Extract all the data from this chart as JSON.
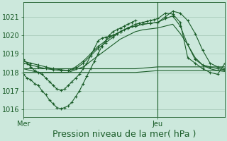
{
  "bg_color": "#cce8dc",
  "grid_color": "#aaccbb",
  "line_color": "#1a5c28",
  "xlabel": "Pression niveau de la mer( hPa )",
  "xlabel_fontsize": 9,
  "yticks": [
    1016,
    1017,
    1018,
    1019,
    1020,
    1021
  ],
  "ylim": [
    1015.6,
    1021.8
  ],
  "xlim": [
    0,
    54
  ],
  "xtick_labels": [
    "Mer",
    "Jeu"
  ],
  "xtick_positions": [
    0,
    36
  ],
  "vline_x": 36,
  "series": [
    {
      "x": [
        0,
        1,
        2,
        3,
        4,
        5,
        6,
        7,
        8,
        9,
        10,
        11,
        12,
        13,
        14,
        15,
        16,
        17,
        18,
        19,
        20,
        21,
        22,
        23,
        24,
        25,
        26,
        27,
        28,
        29,
        30
      ],
      "y": [
        1017.9,
        1017.7,
        1017.6,
        1017.4,
        1017.3,
        1017.0,
        1016.8,
        1016.5,
        1016.3,
        1016.1,
        1016.05,
        1016.1,
        1016.2,
        1016.4,
        1016.7,
        1017.0,
        1017.4,
        1017.8,
        1018.2,
        1018.6,
        1019.0,
        1019.4,
        1019.7,
        1020.0,
        1020.2,
        1020.3,
        1020.4,
        1020.5,
        1020.6,
        1020.7,
        1020.8
      ],
      "with_markers": true
    },
    {
      "x": [
        0,
        6,
        12,
        18,
        24,
        30,
        36,
        42,
        48,
        54
      ],
      "y": [
        1018.0,
        1018.0,
        1018.0,
        1018.0,
        1018.0,
        1018.0,
        1018.1,
        1018.1,
        1018.1,
        1018.1
      ],
      "with_markers": false
    },
    {
      "x": [
        0,
        6,
        12,
        18,
        24,
        30,
        36,
        42,
        48,
        54
      ],
      "y": [
        1018.2,
        1018.2,
        1018.2,
        1018.2,
        1018.2,
        1018.2,
        1018.3,
        1018.3,
        1018.3,
        1018.3
      ],
      "with_markers": false
    },
    {
      "x": [
        0,
        2,
        4,
        6,
        8,
        10,
        12,
        14,
        16,
        18,
        20,
        22,
        24,
        26,
        28,
        30,
        32,
        34,
        36,
        38,
        40,
        42,
        44,
        46,
        48,
        50,
        52,
        54
      ],
      "y": [
        1018.5,
        1018.4,
        1018.3,
        1018.2,
        1018.15,
        1018.1,
        1018.1,
        1018.2,
        1018.5,
        1018.9,
        1019.3,
        1019.6,
        1019.9,
        1020.2,
        1020.4,
        1020.5,
        1020.6,
        1020.65,
        1020.7,
        1021.0,
        1021.3,
        1021.2,
        1020.8,
        1020.1,
        1019.2,
        1018.5,
        1018.3,
        1018.2
      ],
      "with_markers": true
    },
    {
      "x": [
        0,
        2,
        4,
        6,
        8,
        10,
        12,
        14,
        16,
        18,
        20,
        22,
        24,
        26,
        28,
        30,
        32,
        34,
        36,
        38,
        40,
        42,
        44,
        46,
        48,
        50,
        52,
        54
      ],
      "y": [
        1018.6,
        1018.5,
        1018.4,
        1018.3,
        1018.2,
        1018.15,
        1018.1,
        1018.3,
        1018.6,
        1019.0,
        1019.4,
        1019.7,
        1020.0,
        1020.2,
        1020.4,
        1020.5,
        1020.6,
        1020.65,
        1020.7,
        1020.9,
        1021.05,
        1020.5,
        1019.5,
        1018.7,
        1018.4,
        1018.3,
        1018.2,
        1018.15
      ],
      "with_markers": true
    },
    {
      "x": [
        0,
        2,
        4,
        6,
        8,
        10,
        12,
        14,
        16,
        18,
        20,
        22,
        24,
        26,
        28,
        30,
        32,
        34,
        36,
        38,
        40,
        42,
        44,
        46,
        48,
        50,
        52,
        54
      ],
      "y": [
        1018.2,
        1018.1,
        1018.0,
        1018.0,
        1018.0,
        1018.0,
        1018.0,
        1018.15,
        1018.3,
        1018.6,
        1018.9,
        1019.2,
        1019.5,
        1019.8,
        1020.0,
        1020.2,
        1020.3,
        1020.35,
        1020.4,
        1020.5,
        1020.6,
        1020.1,
        1019.5,
        1018.8,
        1018.4,
        1018.2,
        1018.1,
        1018.05
      ],
      "with_markers": false
    },
    {
      "x": [
        0,
        1,
        2,
        3,
        4,
        5,
        6,
        7,
        8,
        9,
        10,
        11,
        12,
        13,
        14,
        15,
        16,
        17,
        18,
        19,
        20,
        21,
        22,
        23,
        24,
        25,
        26,
        27,
        28,
        29,
        30,
        31,
        32,
        33,
        34,
        35,
        36,
        38,
        40,
        42,
        44,
        46,
        48,
        50,
        52,
        54
      ],
      "y": [
        1018.7,
        1018.5,
        1018.3,
        1018.1,
        1018.0,
        1017.9,
        1017.7,
        1017.5,
        1017.3,
        1017.1,
        1017.05,
        1017.1,
        1017.3,
        1017.5,
        1017.7,
        1017.9,
        1018.2,
        1018.5,
        1018.9,
        1019.3,
        1019.7,
        1019.85,
        1019.9,
        1019.95,
        1020.0,
        1020.1,
        1020.2,
        1020.3,
        1020.4,
        1020.5,
        1020.6,
        1020.65,
        1020.7,
        1020.75,
        1020.8,
        1020.85,
        1020.9,
        1021.2,
        1021.15,
        1020.7,
        1018.8,
        1018.5,
        1018.2,
        1018.0,
        1017.9,
        1018.5
      ],
      "with_markers": true
    }
  ]
}
